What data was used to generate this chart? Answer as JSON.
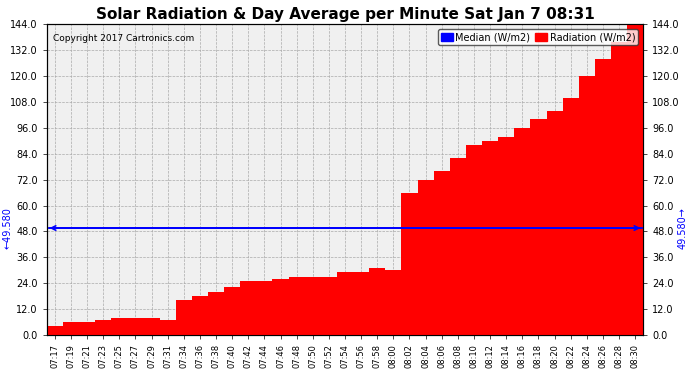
{
  "title": "Solar Radiation & Day Average per Minute Sat Jan 7 08:31",
  "copyright": "Copyright 2017 Cartronics.com",
  "median_value": 49.58,
  "median_label": "49.580",
  "bar_color": "#FF0000",
  "median_color": "#0000FF",
  "background_color": "#F0F0F0",
  "grid_color": "#AAAAAA",
  "ylim": [
    0,
    144
  ],
  "yticks": [
    0.0,
    12.0,
    24.0,
    36.0,
    48.0,
    60.0,
    72.0,
    84.0,
    96.0,
    108.0,
    120.0,
    132.0,
    144.0
  ],
  "legend_median_label": "Median (W/m2)",
  "legend_radiation_label": "Radiation (W/m2)",
  "labels": [
    "07:17",
    "07:19",
    "07:21",
    "07:23",
    "07:25",
    "07:27",
    "07:29",
    "07:31",
    "07:34",
    "07:36",
    "07:38",
    "07:40",
    "07:42",
    "07:44",
    "07:46",
    "07:48",
    "07:50",
    "07:52",
    "07:54",
    "07:56",
    "07:58",
    "08:00",
    "08:02",
    "08:04",
    "08:06",
    "08:08",
    "08:10",
    "08:12",
    "08:14",
    "08:16",
    "08:18",
    "08:20",
    "08:22",
    "08:24",
    "08:26",
    "08:28",
    "08:30"
  ],
  "values": [
    4,
    6,
    6,
    7,
    8,
    8,
    8,
    7,
    16,
    18,
    20,
    22,
    25,
    25,
    26,
    27,
    27,
    27,
    29,
    29,
    31,
    30,
    66,
    72,
    76,
    82,
    88,
    90,
    92,
    96,
    100,
    104,
    110,
    120,
    128,
    136,
    144
  ]
}
